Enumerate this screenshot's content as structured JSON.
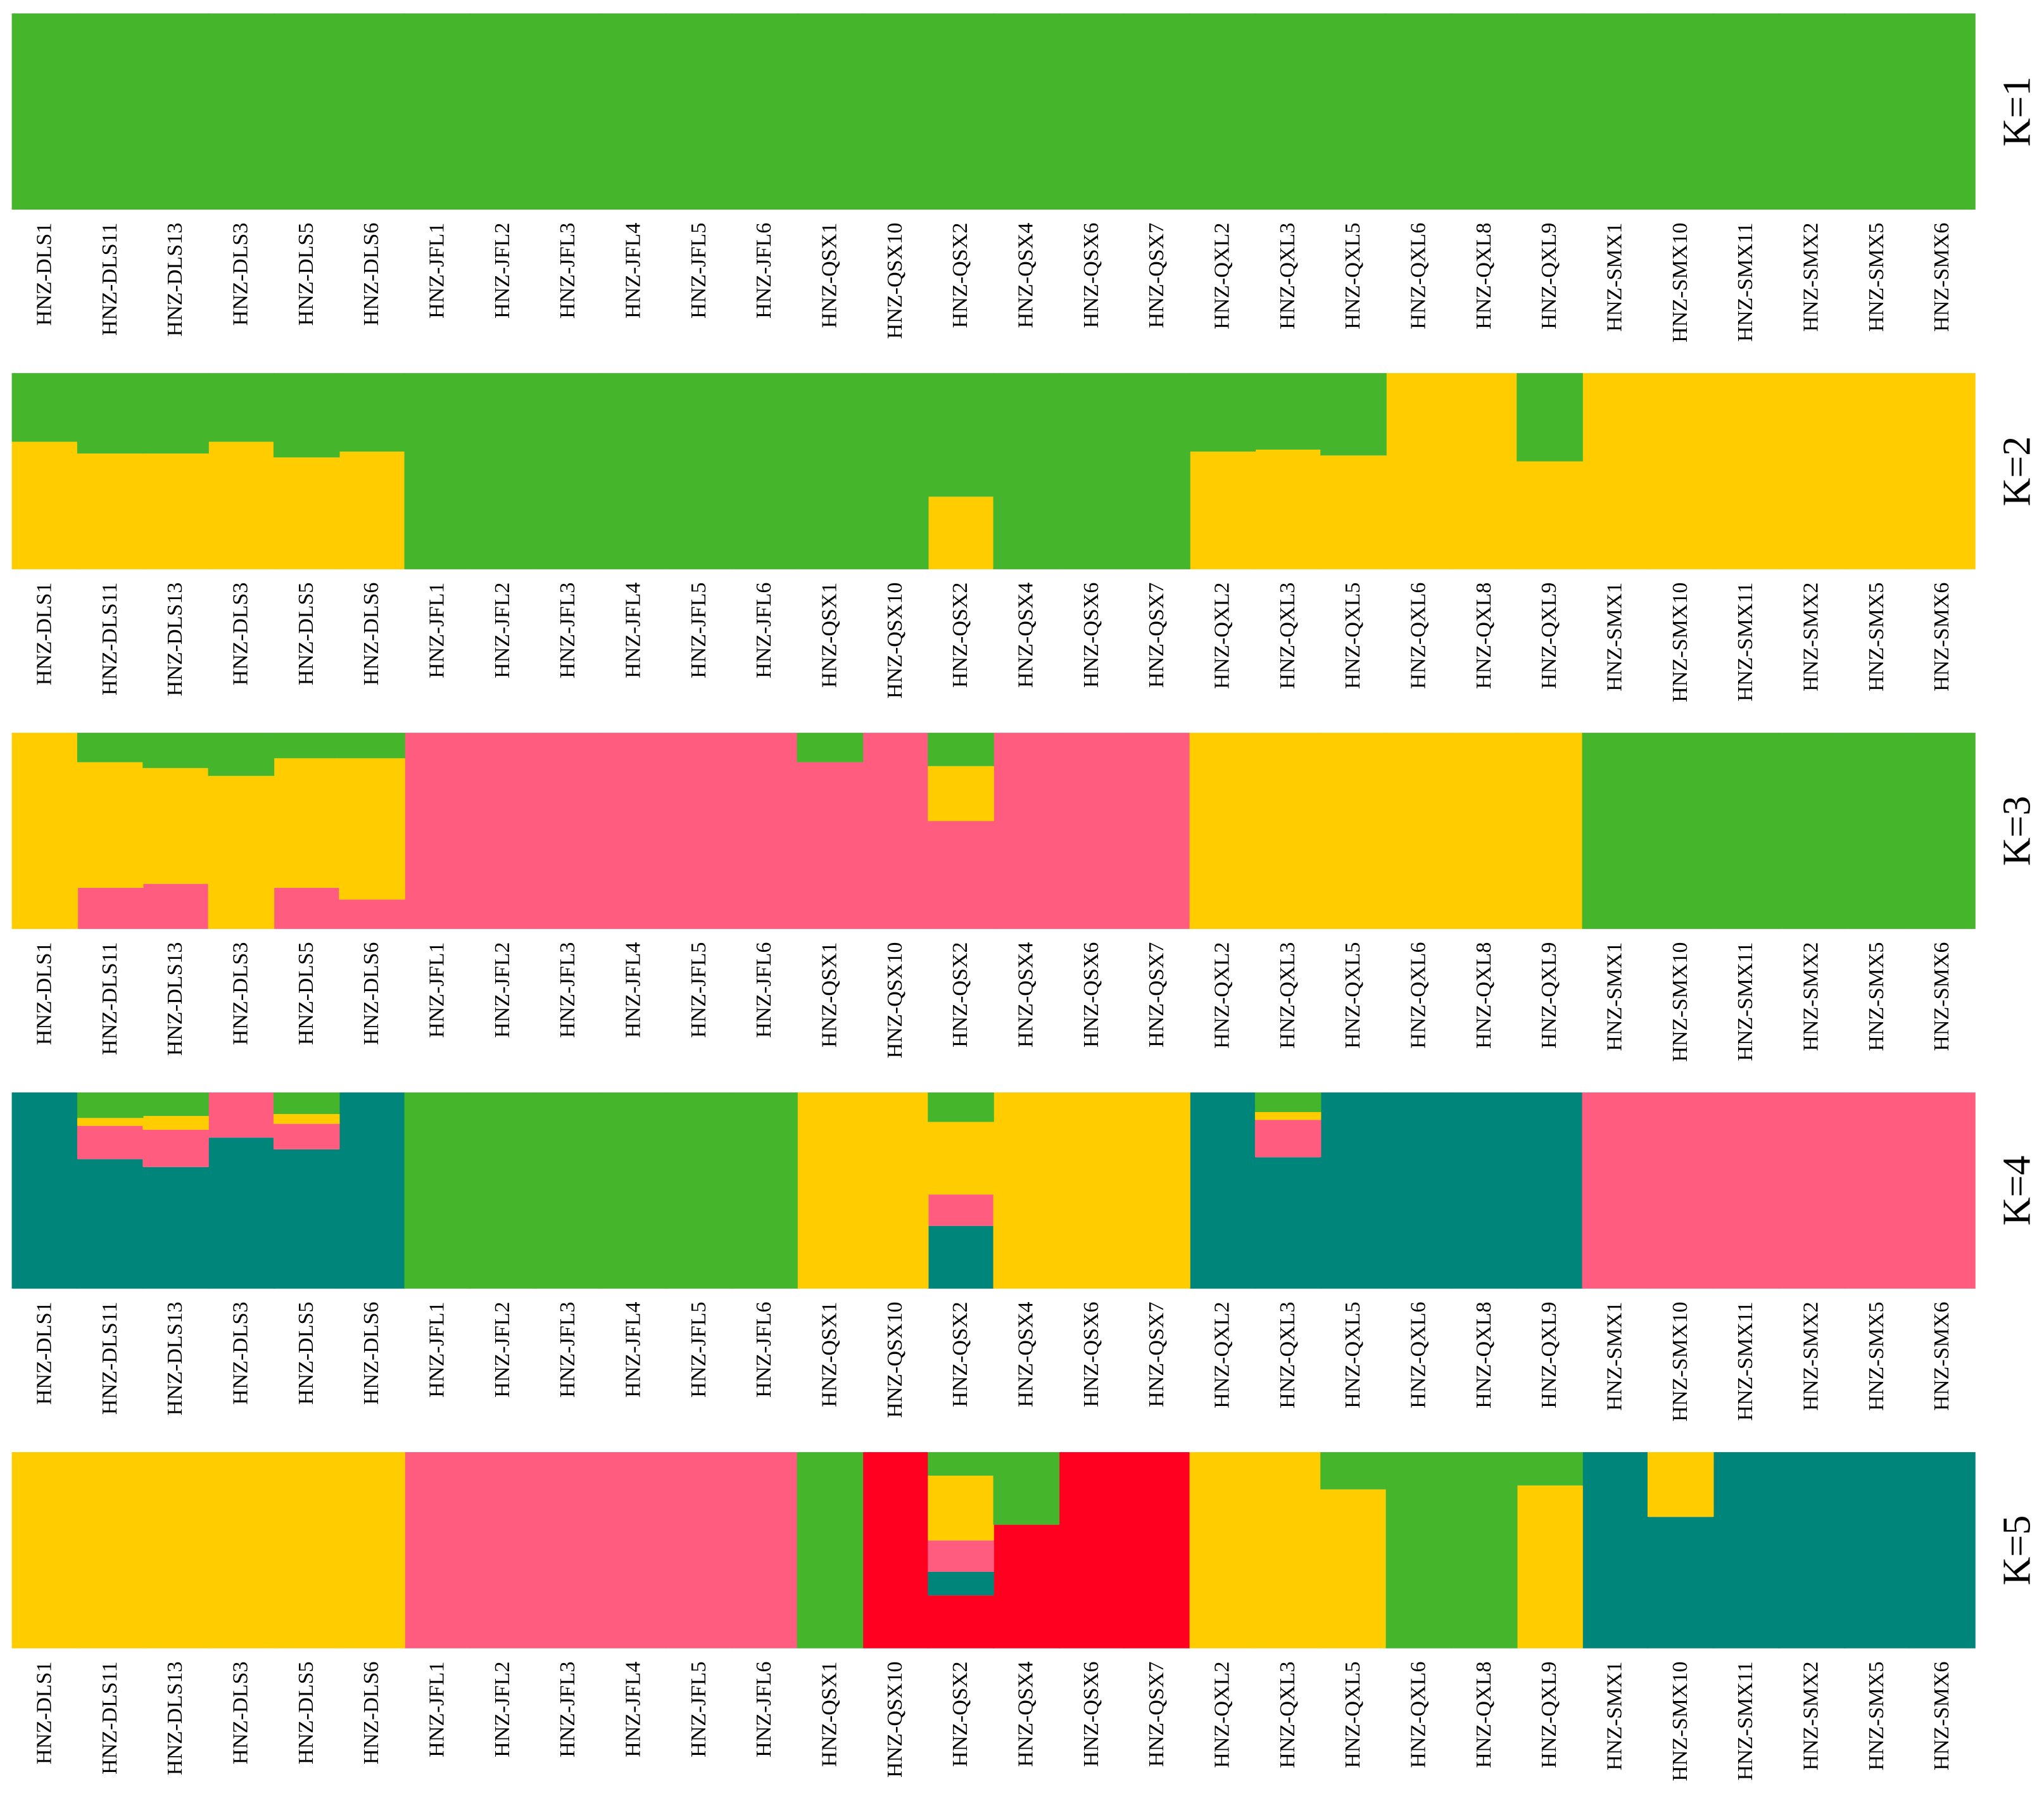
{
  "chart_data": [
    {
      "type": "stacked-bar",
      "title": "K=1",
      "ylim": [
        0,
        1
      ],
      "categories": [
        "HNZ-DLS1",
        "HNZ-DLS11",
        "HNZ-DLS13",
        "HNZ-DLS3",
        "HNZ-DLS5",
        "HNZ-DLS6",
        "HNZ-JFL1",
        "HNZ-JFL2",
        "HNZ-JFL3",
        "HNZ-JFL4",
        "HNZ-JFL5",
        "HNZ-JFL6",
        "HNZ-QSX1",
        "HNZ-QSX10",
        "HNZ-QSX2",
        "HNZ-QSX4",
        "HNZ-QSX6",
        "HNZ-QSX7",
        "HNZ-QXL2",
        "HNZ-QXL3",
        "HNZ-QXL5",
        "HNZ-QXL6",
        "HNZ-QXL8",
        "HNZ-QXL9",
        "HNZ-SMX1",
        "HNZ-SMX10",
        "HNZ-SMX11",
        "HNZ-SMX2",
        "HNZ-SMX5",
        "HNZ-SMX6"
      ],
      "series": [
        {
          "color": "#45b52c",
          "values": [
            1,
            1,
            1,
            1,
            1,
            1,
            1,
            1,
            1,
            1,
            1,
            1,
            1,
            1,
            1,
            1,
            1,
            1,
            1,
            1,
            1,
            1,
            1,
            1,
            1,
            1,
            1,
            1,
            1,
            1
          ]
        }
      ]
    },
    {
      "type": "stacked-bar",
      "title": "K=2",
      "ylim": [
        0,
        1
      ],
      "categories": [
        "HNZ-DLS1",
        "HNZ-DLS11",
        "HNZ-DLS13",
        "HNZ-DLS3",
        "HNZ-DLS5",
        "HNZ-DLS6",
        "HNZ-JFL1",
        "HNZ-JFL2",
        "HNZ-JFL3",
        "HNZ-JFL4",
        "HNZ-JFL5",
        "HNZ-JFL6",
        "HNZ-QSX1",
        "HNZ-QSX10",
        "HNZ-QSX2",
        "HNZ-QSX4",
        "HNZ-QSX6",
        "HNZ-QSX7",
        "HNZ-QXL2",
        "HNZ-QXL3",
        "HNZ-QXL5",
        "HNZ-QXL6",
        "HNZ-QXL8",
        "HNZ-QXL9",
        "HNZ-SMX1",
        "HNZ-SMX10",
        "HNZ-SMX11",
        "HNZ-SMX2",
        "HNZ-SMX5",
        "HNZ-SMX6"
      ],
      "series": [
        {
          "color": "#ffcc00",
          "values": [
            0.65,
            0.59,
            0.59,
            0.65,
            0.57,
            0.6,
            0,
            0,
            0,
            0,
            0,
            0,
            0,
            0,
            0.37,
            0,
            0,
            0,
            0.6,
            0.61,
            0.58,
            1,
            1,
            0.55,
            1,
            1,
            1,
            1,
            1,
            1
          ]
        },
        {
          "color": "#45b52c",
          "values": [
            0.35,
            0.41,
            0.41,
            0.35,
            0.43,
            0.4,
            1,
            1,
            1,
            1,
            1,
            1,
            1,
            1,
            0.63,
            1,
            1,
            1,
            0.4,
            0.39,
            0.42,
            0,
            0,
            0.45,
            0,
            0,
            0,
            0,
            0,
            0
          ]
        }
      ]
    },
    {
      "type": "stacked-bar",
      "title": "K=3",
      "ylim": [
        0,
        1
      ],
      "categories": [
        "HNZ-DLS1",
        "HNZ-DLS11",
        "HNZ-DLS13",
        "HNZ-DLS3",
        "HNZ-DLS5",
        "HNZ-DLS6",
        "HNZ-JFL1",
        "HNZ-JFL2",
        "HNZ-JFL3",
        "HNZ-JFL4",
        "HNZ-JFL5",
        "HNZ-JFL6",
        "HNZ-QSX1",
        "HNZ-QSX10",
        "HNZ-QSX2",
        "HNZ-QSX4",
        "HNZ-QSX6",
        "HNZ-QSX7",
        "HNZ-QXL2",
        "HNZ-QXL3",
        "HNZ-QXL5",
        "HNZ-QXL6",
        "HNZ-QXL8",
        "HNZ-QXL9",
        "HNZ-SMX1",
        "HNZ-SMX10",
        "HNZ-SMX11",
        "HNZ-SMX2",
        "HNZ-SMX5",
        "HNZ-SMX6"
      ],
      "series": [
        {
          "color": "#ff5c80",
          "values": [
            0,
            0.21,
            0.23,
            0,
            0.21,
            0.15,
            1,
            1,
            1,
            1,
            1,
            1,
            0.85,
            1,
            0.55,
            1,
            1,
            1,
            0,
            0,
            0,
            0,
            0,
            0,
            0,
            0,
            0,
            0,
            0,
            0
          ]
        },
        {
          "color": "#ffcc00",
          "values": [
            1,
            0.64,
            0.59,
            0.78,
            0.66,
            0.72,
            0,
            0,
            0,
            0,
            0,
            0,
            0,
            0,
            0.28,
            0,
            0,
            0,
            1,
            1,
            1,
            1,
            1,
            1,
            0,
            0,
            0,
            0,
            0,
            0
          ]
        },
        {
          "color": "#45b52c",
          "values": [
            0,
            0.15,
            0.18,
            0.22,
            0.13,
            0.13,
            0,
            0,
            0,
            0,
            0,
            0,
            0.15,
            0,
            0.17,
            0,
            0,
            0,
            0,
            0,
            0,
            0,
            0,
            0,
            1,
            1,
            1,
            1,
            1,
            1
          ]
        }
      ]
    },
    {
      "type": "stacked-bar",
      "title": "K=4",
      "ylim": [
        0,
        1
      ],
      "categories": [
        "HNZ-DLS1",
        "HNZ-DLS11",
        "HNZ-DLS13",
        "HNZ-DLS3",
        "HNZ-DLS5",
        "HNZ-DLS6",
        "HNZ-JFL1",
        "HNZ-JFL2",
        "HNZ-JFL3",
        "HNZ-JFL4",
        "HNZ-JFL5",
        "HNZ-JFL6",
        "HNZ-QSX1",
        "HNZ-QSX10",
        "HNZ-QSX2",
        "HNZ-QSX4",
        "HNZ-QSX6",
        "HNZ-QSX7",
        "HNZ-QXL2",
        "HNZ-QXL3",
        "HNZ-QXL5",
        "HNZ-QXL6",
        "HNZ-QXL8",
        "HNZ-QXL9",
        "HNZ-SMX1",
        "HNZ-SMX10",
        "HNZ-SMX11",
        "HNZ-SMX2",
        "HNZ-SMX5",
        "HNZ-SMX6"
      ],
      "series": [
        {
          "color": "#00857a",
          "values": [
            1,
            0.66,
            0.62,
            0.77,
            0.71,
            1,
            0,
            0,
            0,
            0,
            0,
            0,
            0,
            0,
            0.32,
            0,
            0,
            0,
            1,
            0.67,
            1,
            1,
            1,
            1,
            0,
            0,
            0,
            0,
            0,
            0
          ]
        },
        {
          "color": "#ff5c80",
          "values": [
            0,
            0.17,
            0.19,
            0.23,
            0.13,
            0,
            0,
            0,
            0,
            0,
            0,
            0,
            0,
            0,
            0.16,
            0,
            0,
            0,
            0,
            0.19,
            0,
            0,
            0,
            0,
            1,
            1,
            1,
            1,
            1,
            1
          ]
        },
        {
          "color": "#ffcc00",
          "values": [
            0,
            0.04,
            0.07,
            0,
            0.05,
            0,
            0,
            0,
            0,
            0,
            0,
            0,
            1,
            1,
            0.37,
            1,
            1,
            1,
            0,
            0.04,
            0,
            0,
            0,
            0,
            0,
            0,
            0,
            0,
            0,
            0
          ]
        },
        {
          "color": "#45b52c",
          "values": [
            0,
            0.13,
            0.12,
            0,
            0.11,
            0,
            1,
            1,
            1,
            1,
            1,
            1,
            0,
            0,
            0.15,
            0,
            0,
            0,
            0,
            0.1,
            0,
            0,
            0,
            0,
            0,
            0,
            0,
            0,
            0,
            0
          ]
        }
      ]
    },
    {
      "type": "stacked-bar",
      "title": "K=5",
      "ylim": [
        0,
        1
      ],
      "categories": [
        "HNZ-DLS1",
        "HNZ-DLS11",
        "HNZ-DLS13",
        "HNZ-DLS3",
        "HNZ-DLS5",
        "HNZ-DLS6",
        "HNZ-JFL1",
        "HNZ-JFL2",
        "HNZ-JFL3",
        "HNZ-JFL4",
        "HNZ-JFL5",
        "HNZ-JFL6",
        "HNZ-QSX1",
        "HNZ-QSX10",
        "HNZ-QSX2",
        "HNZ-QSX4",
        "HNZ-QSX6",
        "HNZ-QSX7",
        "HNZ-QXL2",
        "HNZ-QXL3",
        "HNZ-QXL5",
        "HNZ-QXL6",
        "HNZ-QXL8",
        "HNZ-QXL9",
        "HNZ-SMX1",
        "HNZ-SMX10",
        "HNZ-SMX11",
        "HNZ-SMX2",
        "HNZ-SMX5",
        "HNZ-SMX6"
      ],
      "series": [
        {
          "color": "#ff0020",
          "values": [
            0,
            0,
            0,
            0,
            0,
            0,
            0,
            0,
            0,
            0,
            0,
            0,
            0,
            1,
            0.27,
            0.63,
            1,
            1,
            0,
            0,
            0,
            0,
            0,
            0,
            0,
            0,
            0,
            0,
            0,
            0
          ]
        },
        {
          "color": "#00857a",
          "values": [
            0,
            0,
            0,
            0,
            0,
            0,
            0,
            0,
            0,
            0,
            0,
            0,
            0,
            0,
            0.12,
            0,
            0,
            0,
            0,
            0,
            0,
            0,
            0,
            0,
            1,
            0.67,
            1,
            1,
            1,
            1
          ]
        },
        {
          "color": "#ff5c80",
          "values": [
            0,
            0,
            0,
            0,
            0,
            0,
            1,
            1,
            1,
            1,
            1,
            1,
            0,
            0,
            0.16,
            0,
            0,
            0,
            0,
            0,
            0,
            0,
            0,
            0,
            0,
            0,
            0,
            0,
            0,
            0
          ]
        },
        {
          "color": "#ffcc00",
          "values": [
            1,
            1,
            1,
            1,
            1,
            1,
            0,
            0,
            0,
            0,
            0,
            0,
            0,
            0,
            0.33,
            0,
            0,
            0,
            1,
            1,
            0.81,
            0,
            0,
            0.83,
            0,
            0.33,
            0,
            0,
            0,
            0
          ]
        },
        {
          "color": "#45b52c",
          "values": [
            0,
            0,
            0,
            0,
            0,
            0,
            0,
            0,
            0,
            0,
            0,
            0,
            1,
            0,
            0.12,
            0.37,
            0,
            0,
            0,
            0,
            0.19,
            1,
            1,
            0.17,
            0,
            0,
            0,
            0,
            0,
            0
          ]
        }
      ]
    }
  ]
}
